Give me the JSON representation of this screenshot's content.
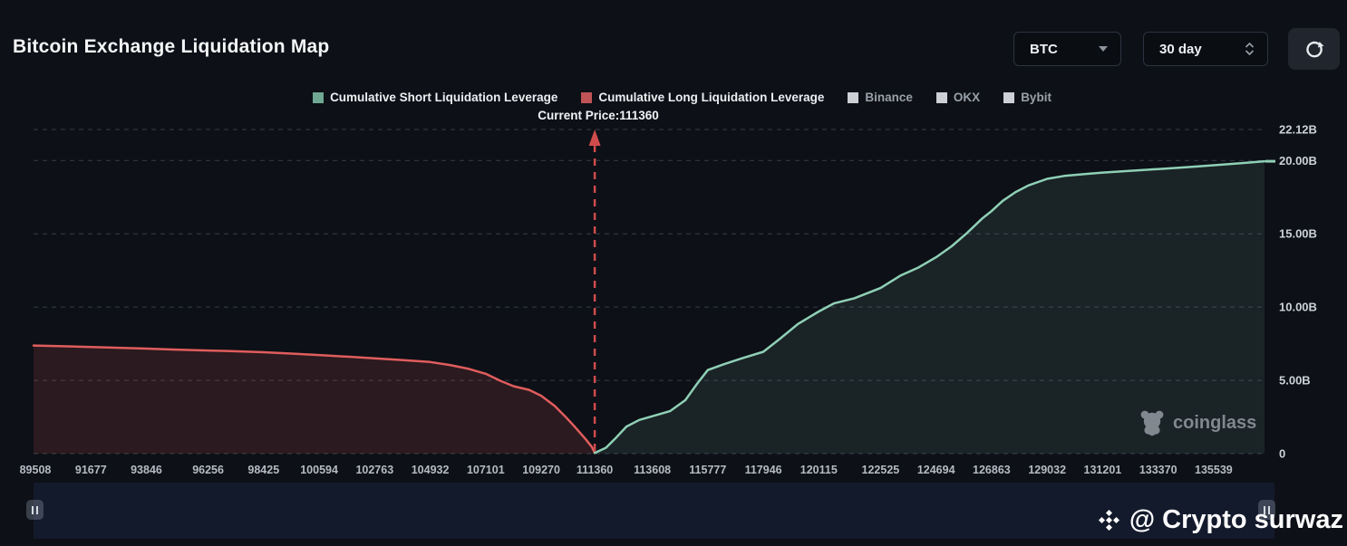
{
  "header": {
    "title": "Bitcoin Exchange Liquidation Map",
    "coin_select": "BTC",
    "range_select": "30 day"
  },
  "legend": {
    "items": [
      {
        "label": "Cumulative Short Liquidation Leverage",
        "color": "#6fa893"
      },
      {
        "label": "Cumulative Long Liquidation Leverage",
        "color": "#bf5355"
      },
      {
        "label": "Binance",
        "color": "#cdd0d4"
      },
      {
        "label": "OKX",
        "color": "#cdd0d4"
      },
      {
        "label": "Bybit",
        "color": "#cdd0d4"
      }
    ]
  },
  "watermarks": {
    "coinglass": "coinglass",
    "credit": "@ Crypto surwaz"
  },
  "chart_data": {
    "type": "area",
    "title": "Bitcoin Exchange Liquidation Map",
    "current_price": 111360,
    "current_price_label": "Current Price:111360",
    "x_domain": [
      89437,
      137525
    ],
    "ylim": [
      0,
      22.12
    ],
    "grid": "dashed-horizontal",
    "legend_position": "top-center",
    "y_axis_side": "right",
    "y_ticks": [
      {
        "label": "22.12B",
        "value": 22.12
      },
      {
        "label": "20.00B",
        "value": 20
      },
      {
        "label": "15.00B",
        "value": 15
      },
      {
        "label": "10.00B",
        "value": 10
      },
      {
        "label": "5.00B",
        "value": 5
      },
      {
        "label": "0",
        "value": 0
      }
    ],
    "x_ticks": [
      89508,
      91677,
      93846,
      96256,
      98425,
      100594,
      102763,
      104932,
      107101,
      109270,
      111360,
      113608,
      115777,
      117946,
      120115,
      122525,
      124694,
      126863,
      129032,
      131201,
      133370,
      135539
    ],
    "price_line": {
      "color": "#d04c4c",
      "style": "dashed"
    },
    "series": [
      {
        "name": "Cumulative Long Liquidation Leverage",
        "key": "long",
        "color": "#e05d5d",
        "fill": "rgba(224,93,93,0.14)",
        "points": [
          [
            89437,
            7.38
          ],
          [
            90600,
            7.33
          ],
          [
            91677,
            7.28
          ],
          [
            92800,
            7.22
          ],
          [
            93846,
            7.17
          ],
          [
            95000,
            7.1
          ],
          [
            96256,
            7.04
          ],
          [
            97400,
            6.98
          ],
          [
            98425,
            6.92
          ],
          [
            99500,
            6.83
          ],
          [
            100594,
            6.73
          ],
          [
            101700,
            6.62
          ],
          [
            102763,
            6.5
          ],
          [
            103900,
            6.38
          ],
          [
            104932,
            6.25
          ],
          [
            105700,
            6.05
          ],
          [
            106400,
            5.8
          ],
          [
            107101,
            5.45
          ],
          [
            107700,
            4.95
          ],
          [
            108200,
            4.6
          ],
          [
            108800,
            4.35
          ],
          [
            109270,
            3.95
          ],
          [
            109800,
            3.25
          ],
          [
            110200,
            2.55
          ],
          [
            110600,
            1.8
          ],
          [
            111000,
            1.0
          ],
          [
            111250,
            0.45
          ],
          [
            111360,
            0.05
          ]
        ]
      },
      {
        "name": "Cumulative Short Liquidation Leverage",
        "key": "short",
        "color": "#8fd0b6",
        "fill": "rgba(143,208,182,0.10)",
        "points": [
          [
            111360,
            0.05
          ],
          [
            111800,
            0.4
          ],
          [
            112200,
            1.1
          ],
          [
            112600,
            1.85
          ],
          [
            113100,
            2.3
          ],
          [
            113608,
            2.55
          ],
          [
            114300,
            2.9
          ],
          [
            114900,
            3.65
          ],
          [
            115350,
            4.75
          ],
          [
            115777,
            5.7
          ],
          [
            116400,
            6.1
          ],
          [
            117100,
            6.5
          ],
          [
            117946,
            6.95
          ],
          [
            118600,
            7.85
          ],
          [
            119300,
            8.85
          ],
          [
            120115,
            9.7
          ],
          [
            120700,
            10.25
          ],
          [
            121500,
            10.6
          ],
          [
            122525,
            11.3
          ],
          [
            123300,
            12.15
          ],
          [
            124000,
            12.7
          ],
          [
            124694,
            13.4
          ],
          [
            125300,
            14.15
          ],
          [
            125900,
            15.05
          ],
          [
            126500,
            16.05
          ],
          [
            126863,
            16.55
          ],
          [
            127300,
            17.25
          ],
          [
            127800,
            17.85
          ],
          [
            128300,
            18.3
          ],
          [
            129032,
            18.75
          ],
          [
            129700,
            18.95
          ],
          [
            130500,
            19.08
          ],
          [
            131201,
            19.18
          ],
          [
            132300,
            19.3
          ],
          [
            133370,
            19.42
          ],
          [
            134500,
            19.55
          ],
          [
            135539,
            19.68
          ],
          [
            136600,
            19.82
          ],
          [
            137525,
            19.95
          ]
        ]
      }
    ]
  }
}
